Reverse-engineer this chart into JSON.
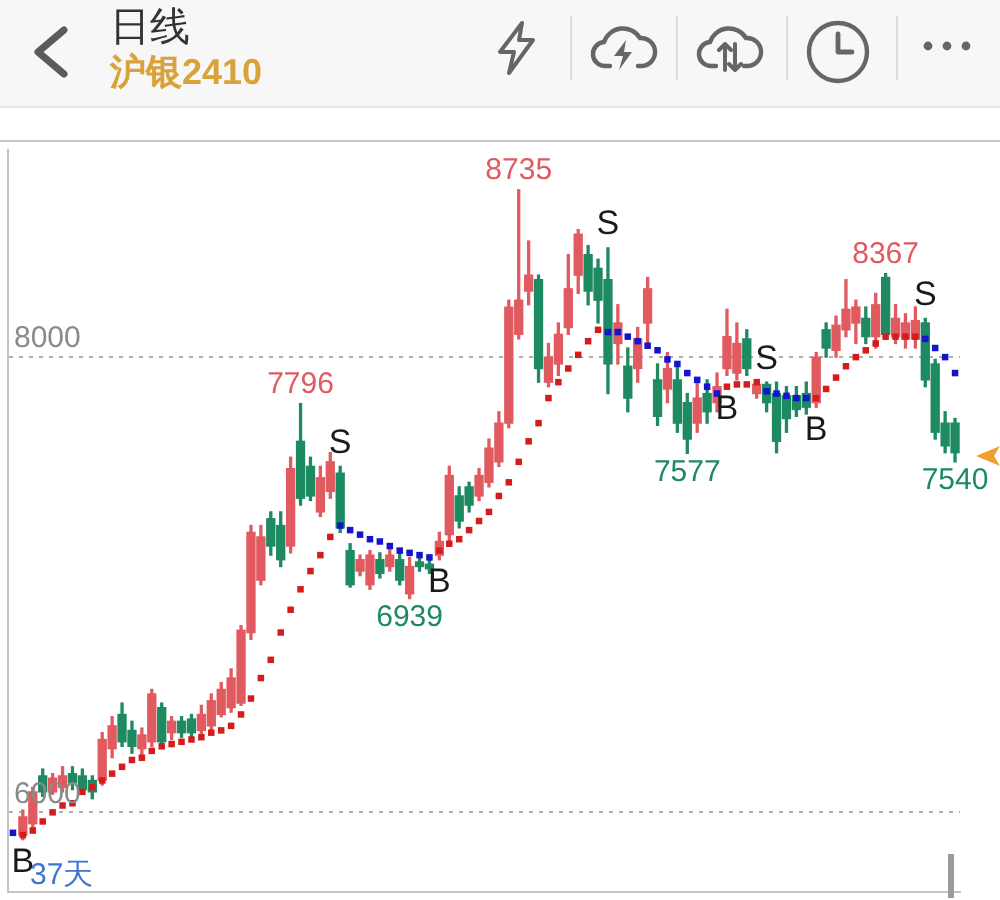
{
  "chart_data": {
    "type": "candlestick",
    "title": "日线",
    "subtitle": "沪银2410",
    "annotations": [
      "37天"
    ],
    "categories": [
      null,
      null,
      null,
      null,
      null,
      null,
      null,
      null,
      null,
      null,
      null,
      null,
      null,
      null,
      null,
      null,
      null,
      null,
      null,
      null,
      null,
      null,
      null,
      null,
      null,
      null,
      null,
      null,
      null,
      null,
      null,
      null,
      null,
      null,
      null,
      null,
      null,
      null,
      null,
      null,
      null,
      null,
      null,
      null,
      null,
      null,
      null,
      null,
      null,
      null,
      null,
      null,
      null,
      null,
      null,
      null,
      null,
      null,
      null,
      null,
      null,
      null,
      null,
      null,
      null,
      null,
      null,
      null,
      null,
      null,
      null,
      null,
      null,
      null,
      null,
      null,
      null,
      null,
      null,
      null,
      null,
      null,
      null,
      null,
      null,
      null,
      null,
      null,
      null,
      null,
      null,
      null,
      null,
      null,
      null,
      null
    ],
    "ohlc": [
      null,
      [
        5900,
        6010,
        5880,
        5980
      ],
      [
        5950,
        6110,
        5930,
        6090
      ],
      [
        6160,
        6190,
        6070,
        6090
      ],
      [
        6090,
        6170,
        6080,
        6150
      ],
      [
        6110,
        6200,
        6090,
        6160
      ],
      [
        6170,
        6200,
        6100,
        6130
      ],
      [
        6160,
        6190,
        6090,
        6100
      ],
      [
        6140,
        6160,
        6060,
        6090
      ],
      [
        6140,
        6350,
        6120,
        6320
      ],
      [
        6280,
        6420,
        6240,
        6380
      ],
      [
        6430,
        6480,
        6290,
        6310
      ],
      [
        6360,
        6400,
        6260,
        6290
      ],
      [
        6280,
        6370,
        6250,
        6340
      ],
      [
        6310,
        6540,
        6290,
        6520
      ],
      [
        6460,
        6480,
        6290,
        6310
      ],
      [
        6350,
        6420,
        6320,
        6400
      ],
      [
        6400,
        6420,
        6330,
        6350
      ],
      [
        6410,
        6430,
        6330,
        6350
      ],
      [
        6360,
        6470,
        6340,
        6430
      ],
      [
        6380,
        6520,
        6360,
        6490
      ],
      [
        6430,
        6570,
        6420,
        6540
      ],
      [
        6460,
        6630,
        6440,
        6590
      ],
      [
        6480,
        6820,
        6470,
        6800
      ],
      [
        6790,
        7260,
        6760,
        7230
      ],
      [
        7020,
        7260,
        7000,
        7210
      ],
      [
        7290,
        7320,
        7130,
        7170
      ],
      [
        7260,
        7320,
        7080,
        7110
      ],
      [
        7170,
        7560,
        7140,
        7510
      ],
      [
        7630,
        7796,
        7350,
        7380
      ],
      [
        7520,
        7560,
        7370,
        7390
      ],
      [
        7320,
        7520,
        7300,
        7470
      ],
      [
        7410,
        7580,
        7380,
        7540
      ],
      [
        7490,
        7520,
        7230,
        7250
      ],
      [
        7150,
        7180,
        6990,
        7000
      ],
      [
        7060,
        7130,
        7040,
        7110
      ],
      [
        7000,
        7150,
        6980,
        7130
      ],
      [
        7110,
        7140,
        7030,
        7050
      ],
      [
        7080,
        7160,
        7060,
        7130
      ],
      [
        7110,
        7150,
        7000,
        7020
      ],
      [
        6960,
        7120,
        6939,
        7080
      ],
      [
        7100,
        7130,
        7060,
        7080
      ],
      [
        7090,
        7110,
        7050,
        7070
      ],
      [
        7130,
        7230,
        7110,
        7190
      ],
      [
        7220,
        7520,
        7190,
        7480
      ],
      [
        7390,
        7430,
        7250,
        7280
      ],
      [
        7430,
        7450,
        7320,
        7350
      ],
      [
        7390,
        7510,
        7370,
        7480
      ],
      [
        7450,
        7640,
        7430,
        7600
      ],
      [
        7540,
        7760,
        7520,
        7710
      ],
      [
        7710,
        8250,
        7690,
        8220
      ],
      [
        8100,
        8735,
        8080,
        8250
      ],
      [
        8290,
        8510,
        8230,
        8360
      ],
      [
        8340,
        8360,
        7890,
        7950
      ],
      [
        7890,
        8060,
        7870,
        8000
      ],
      [
        7970,
        8150,
        7920,
        8100
      ],
      [
        8130,
        8450,
        8100,
        8300
      ],
      [
        8360,
        8560,
        8280,
        8540
      ],
      [
        8450,
        8490,
        8230,
        8290
      ],
      [
        8390,
        8430,
        8150,
        8250
      ],
      [
        8340,
        8480,
        7840,
        7970
      ],
      [
        8060,
        8230,
        7970,
        8150
      ],
      [
        7960,
        8040,
        7760,
        7820
      ],
      [
        7950,
        8130,
        7890,
        8080
      ],
      [
        8150,
        8350,
        8040,
        8300
      ],
      [
        7900,
        7970,
        7700,
        7740
      ],
      [
        7860,
        8020,
        7800,
        7950
      ],
      [
        7900,
        7960,
        7670,
        7710
      ],
      [
        7800,
        7840,
        7577,
        7640
      ],
      [
        7710,
        7890,
        7670,
        7820
      ],
      [
        7840,
        7900,
        7710,
        7760
      ],
      [
        7800,
        7930,
        7760,
        7870
      ],
      [
        7950,
        8210,
        7920,
        8090
      ],
      [
        7930,
        8150,
        7900,
        8060
      ],
      [
        8080,
        8120,
        7920,
        7950
      ],
      [
        7840,
        7900,
        7820,
        7880
      ],
      [
        7880,
        7890,
        7760,
        7800
      ],
      [
        7840,
        7890,
        7580,
        7630
      ],
      [
        7830,
        7870,
        7670,
        7730
      ],
      [
        7830,
        7870,
        7740,
        7770
      ],
      [
        7840,
        7890,
        7750,
        7780
      ],
      [
        7800,
        8020,
        7780,
        8000
      ],
      [
        8120,
        8150,
        8000,
        8040
      ],
      [
        8030,
        8180,
        8000,
        8140
      ],
      [
        8120,
        8340,
        8090,
        8210
      ],
      [
        8150,
        8250,
        8060,
        8220
      ],
      [
        8170,
        8220,
        8060,
        8090
      ],
      [
        8090,
        8280,
        8040,
        8230
      ],
      [
        8350,
        8367,
        8080,
        8100
      ],
      [
        8090,
        8230,
        8060,
        8170
      ],
      [
        8080,
        8190,
        8040,
        8150
      ],
      [
        8080,
        8220,
        8040,
        8160
      ],
      [
        8150,
        8170,
        7870,
        7900
      ],
      [
        7970,
        7990,
        7640,
        7670
      ],
      [
        7710,
        7760,
        7580,
        7610
      ],
      [
        7710,
        7730,
        7540,
        7580
      ]
    ],
    "colors": [
      null,
      "#e05a60",
      "#e05a60",
      "#1d8a62",
      "#e05a60",
      "#e05a60",
      "#1d8a62",
      "#1d8a62",
      "#1d8a62",
      "#e05a60",
      "#e05a60",
      "#1d8a62",
      "#1d8a62",
      "#e05a60",
      "#e05a60",
      "#1d8a62",
      "#e05a60",
      "#1d8a62",
      "#1d8a62",
      "#e05a60",
      "#e05a60",
      "#e05a60",
      "#e05a60",
      "#e05a60",
      "#e05a60",
      "#e05a60",
      "#1d8a62",
      "#1d8a62",
      "#e05a60",
      "#1d8a62",
      "#1d8a62",
      "#e05a60",
      "#e05a60",
      "#1d8a62",
      "#1d8a62",
      "#e05a60",
      "#e05a60",
      "#1d8a62",
      "#e05a60",
      "#1d8a62",
      "#e05a60",
      "#1d8a62",
      "#1d8a62",
      "#e05a60",
      "#e05a60",
      "#1d8a62",
      "#1d8a62",
      "#e05a60",
      "#e05a60",
      "#e05a60",
      "#e05a60",
      "#e05a60",
      "#e05a60",
      "#1d8a62",
      "#e05a60",
      "#e05a60",
      "#e05a60",
      "#e05a60",
      "#1d8a62",
      "#1d8a62",
      "#1d8a62",
      "#e05a60",
      "#1d8a62",
      "#e05a60",
      "#e05a60",
      "#1d8a62",
      "#e05a60",
      "#1d8a62",
      "#1d8a62",
      "#e05a60",
      "#1d8a62",
      "#e05a60",
      "#e05a60",
      "#e05a60",
      "#1d8a62",
      "#e05a60",
      "#1d8a62",
      "#1d8a62",
      "#1d8a62",
      "#1d8a62",
      "#1d8a62",
      "#e05a60",
      "#1d8a62",
      "#e05a60",
      "#e05a60",
      "#e05a60",
      "#1d8a62",
      "#e05a60",
      "#1d8a62",
      "#e05a60",
      "#e05a60",
      "#e05a60",
      "#1d8a62",
      "#1d8a62",
      "#1d8a62",
      "#1d8a62"
    ],
    "value_labels": [
      null,
      null,
      null,
      null,
      null,
      null,
      null,
      null,
      null,
      null,
      null,
      null,
      null,
      null,
      null,
      null,
      null,
      null,
      null,
      null,
      null,
      null,
      null,
      null,
      null,
      null,
      null,
      null,
      null,
      "7796",
      null,
      null,
      null,
      null,
      null,
      null,
      null,
      null,
      null,
      null,
      "6939",
      null,
      null,
      null,
      null,
      null,
      null,
      null,
      null,
      null,
      null,
      "8735",
      null,
      null,
      null,
      null,
      null,
      null,
      null,
      null,
      null,
      null,
      null,
      null,
      null,
      null,
      null,
      null,
      "7577",
      null,
      null,
      null,
      null,
      null,
      null,
      null,
      null,
      null,
      null,
      null,
      null,
      null,
      null,
      null,
      null,
      null,
      null,
      null,
      "8367",
      null,
      null,
      null,
      null,
      null,
      null,
      "7540"
    ],
    "series": [
      {
        "type": "scatter",
        "color": "#d41c1c",
        "values": [
          null,
          5900,
          5920,
          5960,
          6000,
          6030,
          6040,
          6090,
          6110,
          6140,
          6170,
          6200,
          6230,
          6240,
          6270,
          6290,
          6300,
          6310,
          6320,
          6330,
          6350,
          6360,
          6380,
          6430,
          6500,
          6590,
          6670,
          6790,
          6890,
          6980,
          7060,
          7130,
          7210,
          null,
          null,
          null,
          null,
          null,
          null,
          null,
          null,
          null,
          null,
          7150,
          7180,
          7200,
          7240,
          7280,
          7320,
          7390,
          7450,
          7540,
          7630,
          7710,
          7820,
          7890,
          7950,
          8010,
          8070,
          8120,
          null,
          null,
          null,
          null,
          null,
          null,
          null,
          null,
          null,
          null,
          null,
          null,
          7870,
          7880,
          7880,
          7890,
          null,
          null,
          null,
          null,
          null,
          7820,
          7860,
          7910,
          7960,
          8000,
          8030,
          8060,
          8090,
          8090,
          8090,
          8090,
          null,
          null,
          null,
          null
        ],
        "value_labels": [
          null,
          "B",
          null,
          null,
          null,
          null,
          null,
          null,
          null,
          null,
          null,
          null,
          null,
          null,
          null,
          null,
          null,
          null,
          null,
          null,
          null,
          null,
          null,
          null,
          null,
          null,
          null,
          null,
          null,
          null,
          null,
          null,
          null,
          null,
          null,
          null,
          null,
          null,
          null,
          null,
          null,
          null,
          null,
          "B",
          null,
          null,
          null,
          null,
          null,
          null,
          null,
          null,
          null,
          null,
          null,
          null,
          null,
          null,
          null,
          null,
          null,
          null,
          null,
          null,
          null,
          null,
          null,
          null,
          null,
          null,
          null,
          null,
          "B",
          null,
          null,
          null,
          null,
          null,
          null,
          null,
          null,
          "B",
          null,
          null,
          null,
          null,
          null,
          null,
          null,
          null,
          null,
          null,
          null,
          null,
          null,
          null
        ]
      },
      {
        "type": "scatter",
        "color": "#1414cc",
        "values": [
          5910,
          null,
          null,
          null,
          null,
          null,
          null,
          null,
          null,
          null,
          null,
          null,
          null,
          null,
          null,
          null,
          null,
          null,
          null,
          null,
          null,
          null,
          null,
          null,
          null,
          null,
          null,
          null,
          null,
          null,
          null,
          null,
          null,
          7260,
          7240,
          7220,
          7200,
          7190,
          7170,
          7150,
          7140,
          7130,
          7120,
          null,
          null,
          null,
          null,
          null,
          null,
          null,
          null,
          null,
          null,
          null,
          null,
          null,
          null,
          null,
          null,
          null,
          8110,
          8110,
          8090,
          8070,
          8050,
          8030,
          7990,
          7970,
          7930,
          7900,
          7870,
          7840,
          null,
          null,
          null,
          null,
          7850,
          7840,
          7830,
          7820,
          7820,
          null,
          null,
          null,
          null,
          null,
          null,
          null,
          null,
          null,
          null,
          null,
          8080,
          8040,
          8000,
          7930
        ],
        "value_labels": [
          null,
          null,
          null,
          null,
          null,
          null,
          null,
          null,
          null,
          null,
          null,
          null,
          null,
          null,
          null,
          null,
          null,
          null,
          null,
          null,
          null,
          null,
          null,
          null,
          null,
          null,
          null,
          null,
          null,
          null,
          null,
          null,
          null,
          "S",
          null,
          null,
          null,
          null,
          null,
          null,
          null,
          null,
          null,
          null,
          null,
          null,
          null,
          null,
          null,
          null,
          null,
          null,
          null,
          null,
          null,
          null,
          null,
          null,
          null,
          null,
          "S",
          null,
          null,
          null,
          null,
          null,
          null,
          null,
          null,
          null,
          null,
          null,
          null,
          null,
          null,
          null,
          "S",
          null,
          null,
          null,
          null,
          null,
          null,
          null,
          null,
          null,
          null,
          null,
          null,
          null,
          null,
          null,
          "S",
          null,
          null,
          null
        ]
      }
    ],
    "ylim": [
      5650,
      8910
    ],
    "yticks": [
      6000,
      8000
    ],
    "grid": "y",
    "marker": "square",
    "tick_labels": "y"
  }
}
